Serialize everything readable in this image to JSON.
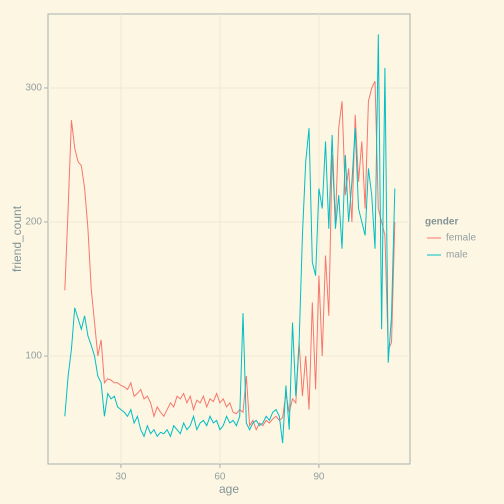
{
  "chart_data": {
    "type": "line",
    "x": [
      13,
      14,
      15,
      16,
      17,
      18,
      19,
      20,
      21,
      22,
      23,
      24,
      25,
      26,
      27,
      28,
      29,
      30,
      31,
      32,
      33,
      34,
      35,
      36,
      37,
      38,
      39,
      40,
      41,
      42,
      43,
      44,
      45,
      46,
      47,
      48,
      49,
      50,
      51,
      52,
      53,
      54,
      55,
      56,
      57,
      58,
      59,
      60,
      61,
      62,
      63,
      64,
      65,
      66,
      67,
      68,
      69,
      70,
      71,
      72,
      73,
      74,
      75,
      76,
      77,
      78,
      79,
      80,
      81,
      82,
      83,
      84,
      85,
      86,
      87,
      88,
      89,
      90,
      91,
      92,
      93,
      94,
      95,
      96,
      97,
      98,
      99,
      100,
      101,
      102,
      103,
      104,
      105,
      106,
      107,
      108,
      109,
      110,
      111,
      112,
      113
    ],
    "series": [
      {
        "name": "female",
        "color": "#F8766D",
        "values": [
          149,
          210,
          276,
          255,
          245,
          242,
          225,
          195,
          150,
          125,
          100,
          112,
          80,
          83,
          82,
          80,
          80,
          78,
          77,
          75,
          80,
          70,
          72,
          75,
          68,
          70,
          65,
          55,
          62,
          58,
          55,
          60,
          65,
          62,
          70,
          68,
          72,
          65,
          70,
          60,
          67,
          65,
          70,
          62,
          68,
          66,
          72,
          65,
          68,
          62,
          65,
          58,
          57,
          60,
          58,
          85,
          48,
          52,
          45,
          50,
          48,
          52,
          50,
          53,
          55,
          52,
          54,
          72,
          58,
          68,
          65,
          110,
          70,
          100,
          60,
          140,
          75,
          160,
          100,
          175,
          130,
          250,
          200,
          270,
          290,
          220,
          240,
          200,
          280,
          230,
          260,
          210,
          290,
          300,
          305,
          210,
          200,
          190,
          105,
          110,
          200
        ]
      },
      {
        "name": "male",
        "color": "#00BFC4",
        "values": [
          55,
          85,
          105,
          136,
          128,
          120,
          130,
          115,
          108,
          100,
          85,
          80,
          55,
          72,
          68,
          70,
          62,
          60,
          58,
          55,
          60,
          50,
          55,
          45,
          40,
          48,
          42,
          45,
          40,
          43,
          42,
          45,
          40,
          48,
          45,
          42,
          50,
          45,
          48,
          55,
          45,
          50,
          52,
          48,
          55,
          50,
          52,
          45,
          48,
          55,
          50,
          52,
          48,
          55,
          132,
          50,
          45,
          50,
          52,
          48,
          50,
          55,
          52,
          58,
          60,
          55,
          35,
          78,
          45,
          125,
          70,
          110,
          190,
          245,
          270,
          170,
          160,
          225,
          210,
          260,
          195,
          265,
          195,
          220,
          180,
          250,
          200,
          230,
          270,
          210,
          200,
          190,
          240,
          220,
          180,
          340,
          120,
          315,
          95,
          130,
          225
        ]
      }
    ],
    "xlabel": "age",
    "ylabel": "friend_count",
    "legend_title": "gender",
    "xlim": [
      7.9,
      117.6
    ],
    "xticks": [
      30,
      60,
      90
    ],
    "ylim": [
      19.4,
      355.2
    ],
    "yticks": [
      100,
      200,
      300
    ],
    "grid": true
  }
}
